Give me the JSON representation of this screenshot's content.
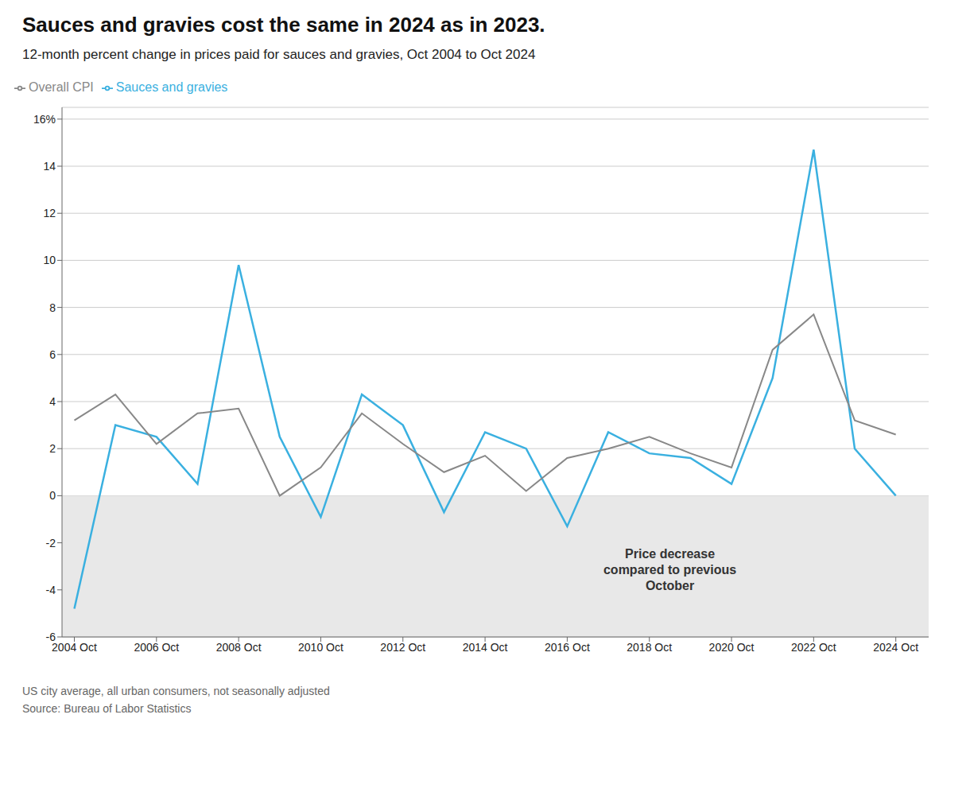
{
  "chart_data": {
    "type": "line",
    "title": "Sauces and gravies cost the same in 2024 as in 2023.",
    "subtitle": "12-month percent change in prices paid for sauces and gravies, Oct 2004 to Oct 2024",
    "annotations": [
      {
        "text": "Price decrease\ncompared to previous\nOctober",
        "x": 2018.5,
        "y": -3.2
      }
    ],
    "footnotes": [
      "US city average, all urban consumers, not seasonally adjusted",
      "Source: Bureau of Labor Statistics"
    ],
    "x": [
      2004,
      2005,
      2006,
      2007,
      2008,
      2009,
      2010,
      2011,
      2012,
      2013,
      2014,
      2015,
      2016,
      2017,
      2018,
      2019,
      2020,
      2021,
      2022,
      2023,
      2024
    ],
    "series": [
      {
        "name": "Sauces and gravies",
        "color": "#3ab0e0",
        "values": [
          -4.8,
          3.0,
          2.5,
          0.5,
          9.8,
          2.5,
          -0.9,
          4.3,
          3.0,
          -0.7,
          2.7,
          2.0,
          -1.3,
          2.7,
          1.8,
          1.6,
          0.5,
          5.0,
          14.7,
          2.0,
          0.0
        ]
      },
      {
        "name": "Overall CPI",
        "color": "#888888",
        "values": [
          3.2,
          4.3,
          2.2,
          3.5,
          3.7,
          0.0,
          1.2,
          3.5,
          2.2,
          1.0,
          1.7,
          0.2,
          1.6,
          2.0,
          2.5,
          1.8,
          1.2,
          6.2,
          7.7,
          3.2,
          2.6
        ]
      }
    ],
    "xlim": [
      2003.7,
      2024.8
    ],
    "xticks": [
      {
        "value": 2004,
        "label": "2004 Oct"
      },
      {
        "value": 2006,
        "label": "2006 Oct"
      },
      {
        "value": 2008,
        "label": "2008 Oct"
      },
      {
        "value": 2010,
        "label": "2010 Oct"
      },
      {
        "value": 2012,
        "label": "2012 Oct"
      },
      {
        "value": 2014,
        "label": "2014 Oct"
      },
      {
        "value": 2016,
        "label": "2016 Oct"
      },
      {
        "value": 2018,
        "label": "2018 Oct"
      },
      {
        "value": 2020,
        "label": "2020 Oct"
      },
      {
        "value": 2022,
        "label": "2022 Oct"
      },
      {
        "value": 2024,
        "label": "2024 Oct"
      }
    ],
    "ylim": [
      -6,
      16.5
    ],
    "yticks": [
      -6,
      -4,
      -2,
      0,
      2,
      4,
      6,
      8,
      10,
      12,
      14,
      {
        "value": 16,
        "label": "16%"
      }
    ],
    "shaded_range": [
      -6,
      0
    ],
    "grid": true,
    "legend": "top left"
  }
}
